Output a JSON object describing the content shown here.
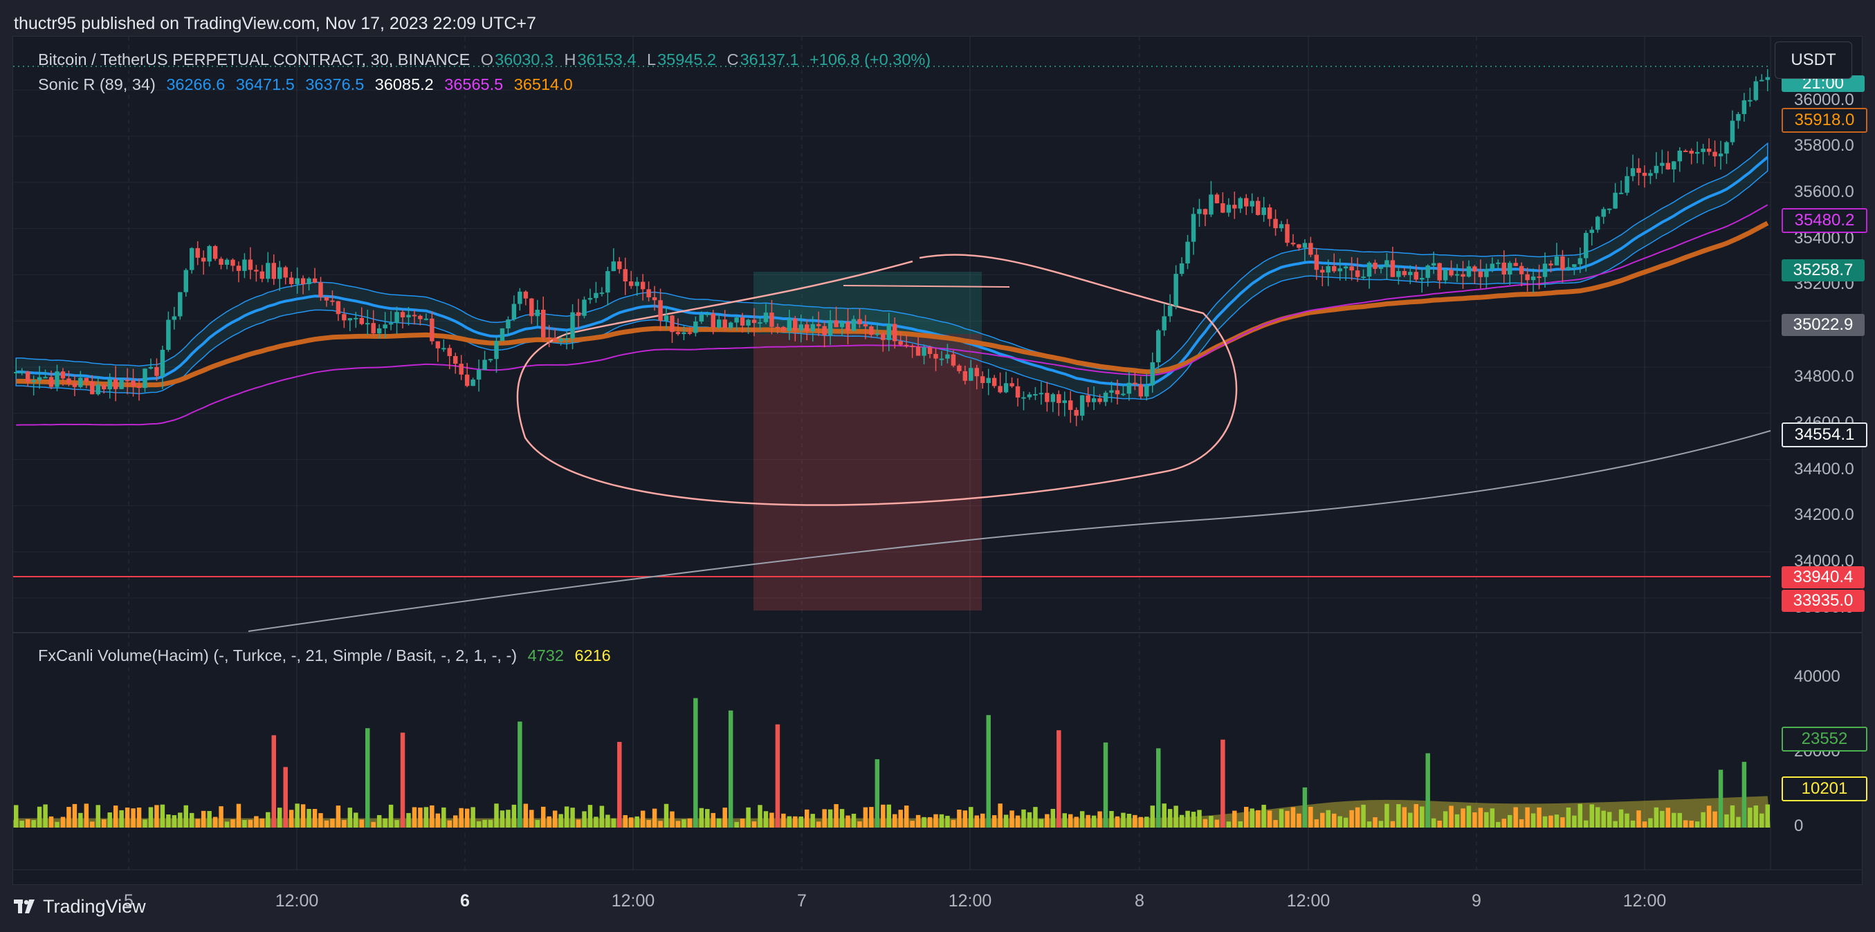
{
  "header": {
    "published": "thuctr95 published on TradingView.com, Nov 17, 2023 22:09 UTC+7"
  },
  "legend_main": {
    "symbol": "Bitcoin / TetherUS PERPETUAL CONTRACT, 30, BINANCE",
    "o_label": "O",
    "o": "36030.3",
    "h_label": "H",
    "h": "36153.4",
    "l_label": "L",
    "l": "35945.2",
    "c_label": "C",
    "c": "36137.1",
    "change": "+106.8 (+0.30%)"
  },
  "legend_sonic": {
    "name": "Sonic R (89, 34)",
    "v1": "36266.6",
    "v2": "36471.5",
    "v3": "36376.5",
    "v4": "36085.2",
    "v5": "36565.5",
    "v6": "36514.0"
  },
  "legend_volume": {
    "name": "FxCanli Volume(Hacim) (-, Turkce, -, 21, Simple / Basit, -, 2, 1, -, -)",
    "v1": "4732",
    "v2": "6216"
  },
  "currency_button": "USDT",
  "price_axis": [
    "36000.0",
    "35800.0",
    "35600.0",
    "35400.0",
    "35200.0",
    "34800.0",
    "34600.0",
    "34400.0",
    "34200.0",
    "34000.0",
    "33800.0"
  ],
  "price_tags": {
    "top_partial": "21:00",
    "t1": "35918.0",
    "t2": "35480.2",
    "t3": "35258.7",
    "t4": "35022.9",
    "t5": "34554.1",
    "t6": "33940.4",
    "t7": "33935.0"
  },
  "volume_axis": [
    "40000",
    "20000",
    "0"
  ],
  "volume_tags": {
    "v1": "23552",
    "v2": "10201"
  },
  "time_axis": [
    "5",
    "12:00",
    "6",
    "12:00",
    "7",
    "12:00",
    "8",
    "12:00",
    "9",
    "12:00"
  ],
  "footer": {
    "brand": "TradingView"
  },
  "colors": {
    "up": "#26a69a",
    "down": "#ef5350",
    "bg": "#161a25",
    "ema_blue": "#2196f3",
    "ema_orange": "#c8641e",
    "ema_magenta": "#c026d3"
  },
  "icons": {
    "logo": "tradingview-logo-icon"
  }
}
